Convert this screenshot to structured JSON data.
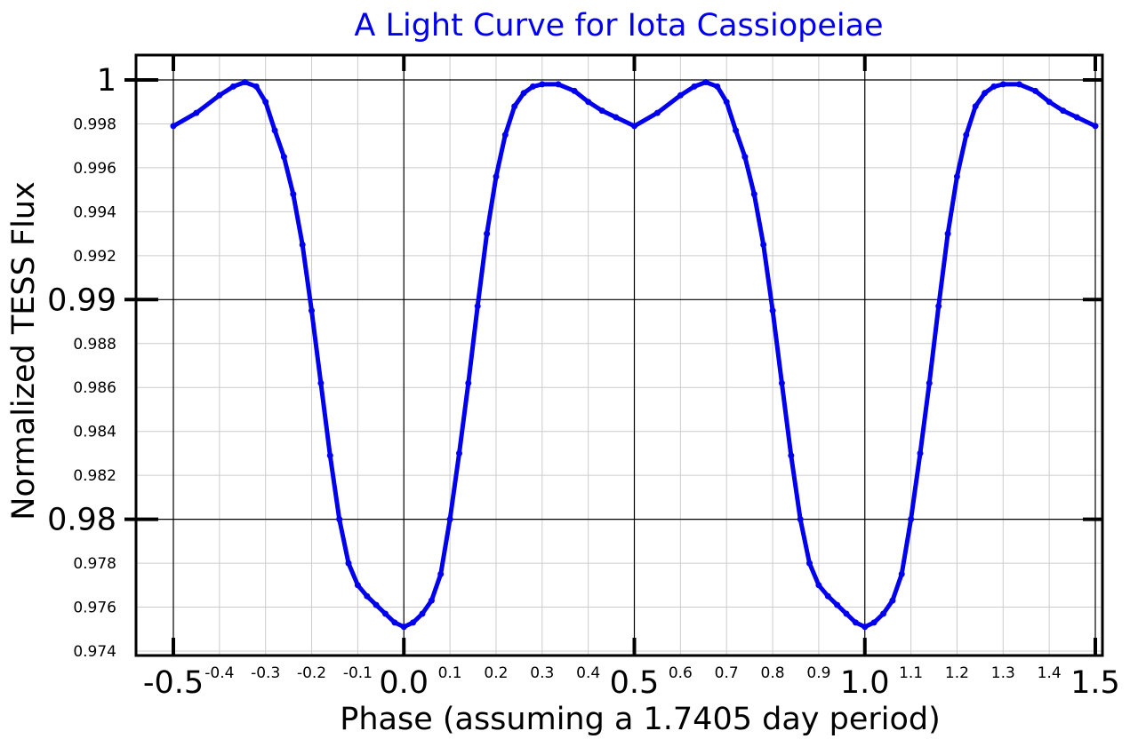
{
  "chart_data": {
    "type": "scatter",
    "title": "A Light Curve for Iota Cassiopeiae",
    "xlabel": "Phase (assuming a 1.7405 day period)",
    "ylabel": "Normalized TESS Flux",
    "xlim": [
      -0.5,
      1.5
    ],
    "ylim": [
      0.974,
      1.0
    ],
    "x_ticks_major": [
      {
        "value": -0.5,
        "label": "-0.5"
      },
      {
        "value": 0.0,
        "label": "0.0"
      },
      {
        "value": 0.5,
        "label": "0.5"
      },
      {
        "value": 1.0,
        "label": "1.0"
      },
      {
        "value": 1.5,
        "label": "1.5"
      }
    ],
    "x_ticks_minor": [
      {
        "value": -0.4,
        "label": "-0.4"
      },
      {
        "value": -0.3,
        "label": "-0.3"
      },
      {
        "value": -0.2,
        "label": "-0.2"
      },
      {
        "value": -0.1,
        "label": "-0.1"
      },
      {
        "value": 0.1,
        "label": "0.1"
      },
      {
        "value": 0.2,
        "label": "0.2"
      },
      {
        "value": 0.3,
        "label": "0.3"
      },
      {
        "value": 0.4,
        "label": "0.4"
      },
      {
        "value": 0.6,
        "label": "0.6"
      },
      {
        "value": 0.7,
        "label": "0.7"
      },
      {
        "value": 0.8,
        "label": "0.8"
      },
      {
        "value": 0.9,
        "label": "0.9"
      },
      {
        "value": 1.1,
        "label": "1.1"
      },
      {
        "value": 1.2,
        "label": "1.2"
      },
      {
        "value": 1.3,
        "label": "1.3"
      },
      {
        "value": 1.4,
        "label": "1.4"
      }
    ],
    "y_ticks_major": [
      {
        "value": 1.0,
        "label": "1"
      },
      {
        "value": 0.99,
        "label": "0.99"
      },
      {
        "value": 0.98,
        "label": "0.98"
      }
    ],
    "y_ticks_minor": [
      {
        "value": 0.998,
        "label": "0.998"
      },
      {
        "value": 0.996,
        "label": "0.996"
      },
      {
        "value": 0.994,
        "label": "0.994"
      },
      {
        "value": 0.992,
        "label": "0.992"
      },
      {
        "value": 0.988,
        "label": "0.988"
      },
      {
        "value": 0.986,
        "label": "0.986"
      },
      {
        "value": 0.984,
        "label": "0.984"
      },
      {
        "value": 0.982,
        "label": "0.982"
      },
      {
        "value": 0.978,
        "label": "0.978"
      },
      {
        "value": 0.976,
        "label": "0.976"
      },
      {
        "value": 0.974,
        "label": "0.974"
      }
    ],
    "grid": true,
    "series": [
      {
        "color": "#0000ee",
        "x": [
          -0.5,
          -0.45,
          -0.4,
          -0.37,
          -0.345,
          -0.32,
          -0.3,
          -0.28,
          -0.26,
          -0.24,
          -0.22,
          -0.2,
          -0.18,
          -0.16,
          -0.14,
          -0.12,
          -0.1,
          -0.08,
          -0.06,
          -0.04,
          -0.02,
          0.0,
          0.02,
          0.04,
          0.06,
          0.08,
          0.1,
          0.12,
          0.14,
          0.16,
          0.18,
          0.2,
          0.22,
          0.24,
          0.26,
          0.28,
          0.3,
          0.335,
          0.37,
          0.4,
          0.43,
          0.46,
          0.5,
          0.55,
          0.6,
          0.63,
          0.655,
          0.68,
          0.7,
          0.72,
          0.74,
          0.76,
          0.78,
          0.8,
          0.82,
          0.84,
          0.86,
          0.88,
          0.9,
          0.92,
          0.94,
          0.96,
          0.98,
          1.0,
          1.02,
          1.04,
          1.06,
          1.08,
          1.1,
          1.12,
          1.14,
          1.16,
          1.18,
          1.2,
          1.22,
          1.24,
          1.26,
          1.28,
          1.3,
          1.335,
          1.37,
          1.4,
          1.43,
          1.46,
          1.5
        ],
        "y": [
          0.9979,
          0.9985,
          0.9993,
          0.9997,
          0.9999,
          0.9997,
          0.999,
          0.9977,
          0.9965,
          0.9948,
          0.9925,
          0.9895,
          0.9862,
          0.9829,
          0.98,
          0.978,
          0.977,
          0.9765,
          0.9761,
          0.9757,
          0.9753,
          0.9751,
          0.9753,
          0.9757,
          0.9763,
          0.9775,
          0.98,
          0.983,
          0.9862,
          0.9897,
          0.993,
          0.9956,
          0.9975,
          0.9988,
          0.9994,
          0.9997,
          0.9998,
          0.9998,
          0.9995,
          0.999,
          0.9986,
          0.9983,
          0.9979,
          0.9985,
          0.9993,
          0.9997,
          0.9999,
          0.9997,
          0.999,
          0.9977,
          0.9965,
          0.9948,
          0.9925,
          0.9895,
          0.9862,
          0.9829,
          0.98,
          0.978,
          0.977,
          0.9765,
          0.9761,
          0.9757,
          0.9753,
          0.9751,
          0.9753,
          0.9757,
          0.9763,
          0.9775,
          0.98,
          0.983,
          0.9862,
          0.9897,
          0.993,
          0.9956,
          0.9975,
          0.9988,
          0.9994,
          0.9997,
          0.9998,
          0.9998,
          0.9995,
          0.999,
          0.9986,
          0.9983,
          0.9979
        ]
      }
    ]
  },
  "colors": {
    "title": "#0000ee",
    "series": "#0000ee",
    "grid": "#cccccc",
    "axis": "#000000"
  }
}
